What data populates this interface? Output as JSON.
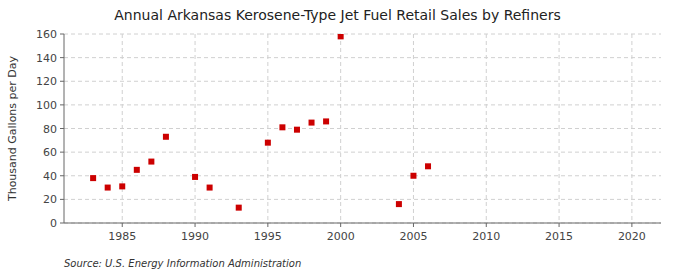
{
  "chart_data": {
    "type": "scatter",
    "title": "Annual Arkansas Kerosene-Type Jet Fuel Retail Sales by Refiners",
    "ylabel": "Thousand Gallons per Day",
    "source": "Source: U.S. Energy Information Administration",
    "x": [
      1983,
      1984,
      1985,
      1986,
      1987,
      1988,
      1990,
      1991,
      1993,
      1995,
      1996,
      1997,
      1998,
      1999,
      2000,
      2004,
      2005,
      2006
    ],
    "values": [
      38,
      30,
      31,
      45,
      52,
      73,
      39,
      30,
      13,
      68,
      81,
      79,
      85,
      86,
      158,
      16,
      40,
      48
    ],
    "color": "#cc0000",
    "marker": "square",
    "xlim": [
      1981,
      2022
    ],
    "ylim": [
      0,
      160
    ],
    "xticks": [
      1985,
      1990,
      1995,
      2000,
      2005,
      2010,
      2015,
      2020
    ],
    "yticks": [
      0,
      20,
      40,
      60,
      80,
      100,
      120,
      140,
      160
    ],
    "grid": true
  }
}
